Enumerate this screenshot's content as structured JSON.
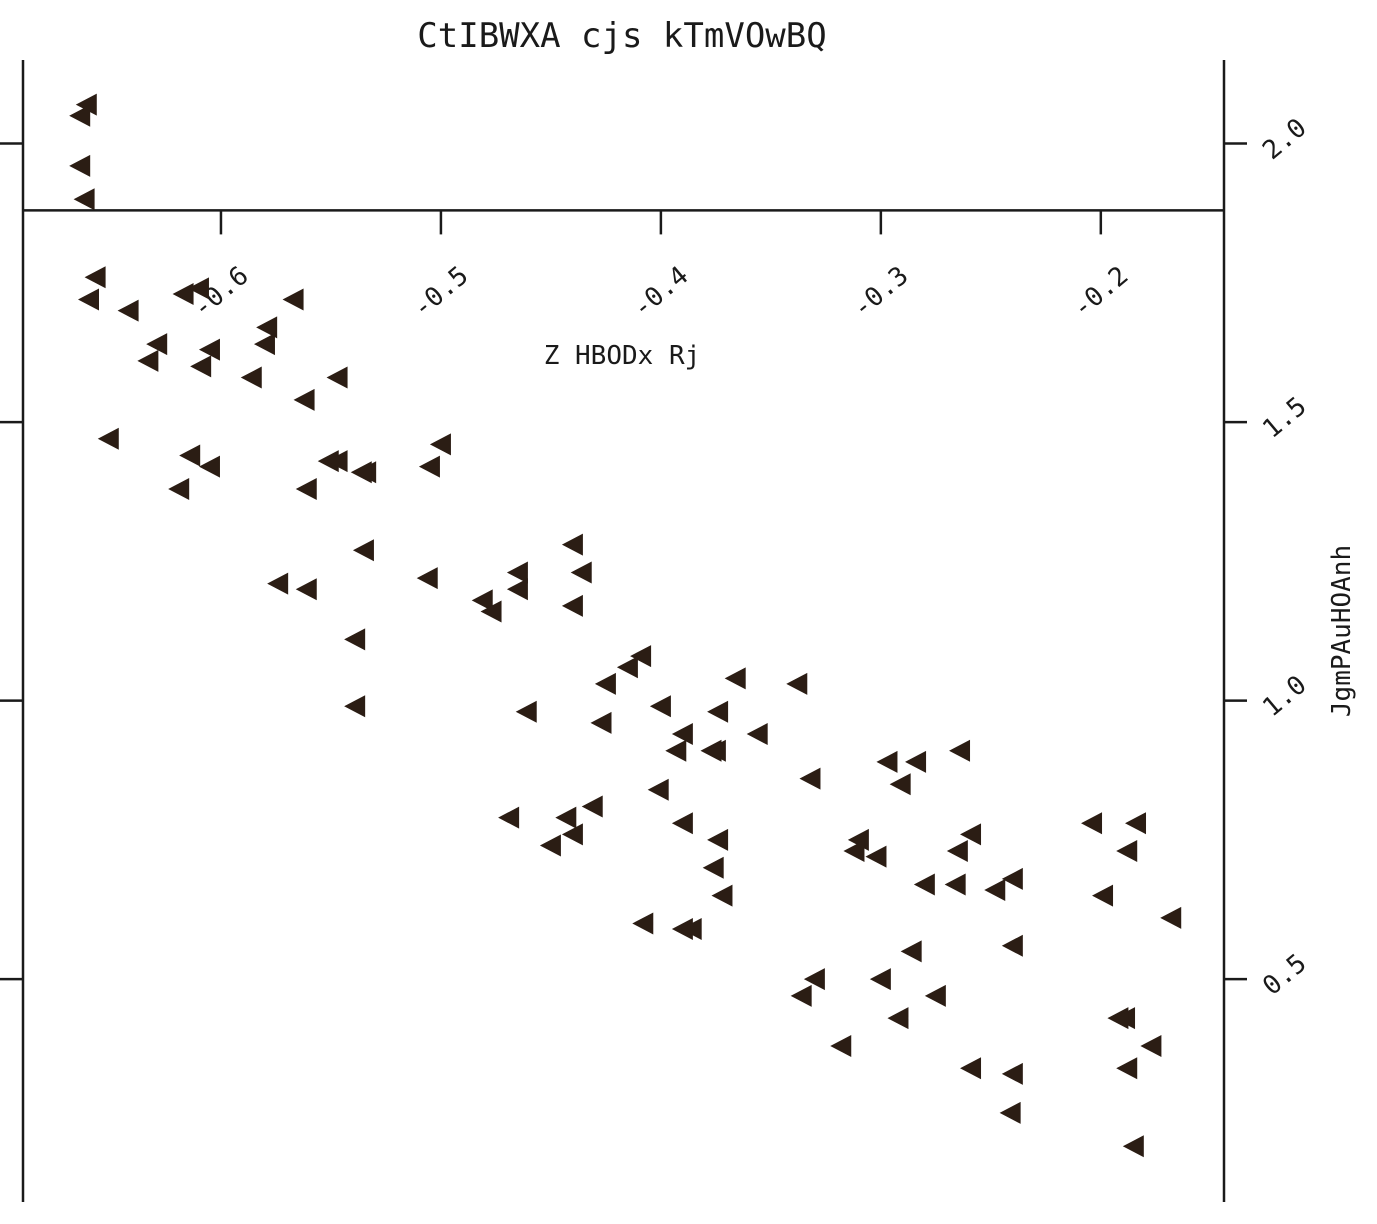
{
  "chart_data": {
    "type": "scatter",
    "title": "CtIBWXA  cjs kTmVOwBQ",
    "xlabel": "Z HBODx Rj",
    "ylabel": "JgmPAuHOAnh",
    "xlim": [
      -0.69,
      -0.144
    ],
    "ylim": [
      0.1,
      2.15
    ],
    "x_ticks": [
      "-0.6",
      "-0.5",
      "-0.4",
      "-0.3",
      "-0.2"
    ],
    "x_tick_values": [
      -0.6,
      -0.5,
      -0.4,
      -0.3,
      -0.2
    ],
    "y_ticks": [
      "0.5",
      "1.0",
      "1.5",
      "2.0"
    ],
    "y_tick_values": [
      0.5,
      1.0,
      1.5,
      2.0
    ],
    "x_axis_value": 1.88,
    "marker": "triangle-left",
    "marker_color": "#2b1d14",
    "grid": false,
    "series": [
      {
        "points": [
          [
            -0.661,
            2.07
          ],
          [
            -0.664,
            2.05
          ],
          [
            -0.664,
            1.96
          ],
          [
            -0.662,
            1.9
          ],
          [
            -0.657,
            1.76
          ],
          [
            -0.66,
            1.72
          ],
          [
            -0.642,
            1.7
          ],
          [
            -0.617,
            1.73
          ],
          [
            -0.61,
            1.74
          ],
          [
            -0.579,
            1.67
          ],
          [
            -0.567,
            1.72
          ],
          [
            -0.629,
            1.64
          ],
          [
            -0.633,
            1.61
          ],
          [
            -0.605,
            1.63
          ],
          [
            -0.609,
            1.6
          ],
          [
            -0.58,
            1.64
          ],
          [
            -0.586,
            1.58
          ],
          [
            -0.562,
            1.54
          ],
          [
            -0.547,
            1.58
          ],
          [
            -0.651,
            1.47
          ],
          [
            -0.614,
            1.44
          ],
          [
            -0.605,
            1.42
          ],
          [
            -0.619,
            1.38
          ],
          [
            -0.561,
            1.38
          ],
          [
            -0.551,
            1.43
          ],
          [
            -0.547,
            1.43
          ],
          [
            -0.534,
            1.41
          ],
          [
            -0.536,
            1.41
          ],
          [
            -0.5,
            1.46
          ],
          [
            -0.505,
            1.42
          ],
          [
            -0.535,
            1.27
          ],
          [
            -0.574,
            1.21
          ],
          [
            -0.561,
            1.2
          ],
          [
            -0.506,
            1.22
          ],
          [
            -0.539,
            1.11
          ],
          [
            -0.539,
            0.99
          ],
          [
            -0.481,
            1.18
          ],
          [
            -0.477,
            1.16
          ],
          [
            -0.465,
            1.23
          ],
          [
            -0.465,
            1.2
          ],
          [
            -0.44,
            1.28
          ],
          [
            -0.436,
            1.23
          ],
          [
            -0.44,
            1.17
          ],
          [
            -0.461,
            0.98
          ],
          [
            -0.409,
            1.08
          ],
          [
            -0.415,
            1.06
          ],
          [
            -0.425,
            1.03
          ],
          [
            -0.366,
            1.04
          ],
          [
            -0.338,
            1.03
          ],
          [
            -0.427,
            0.96
          ],
          [
            -0.4,
            0.99
          ],
          [
            -0.39,
            0.94
          ],
          [
            -0.393,
            0.91
          ],
          [
            -0.377,
            0.91
          ],
          [
            -0.375,
            0.91
          ],
          [
            -0.374,
            0.98
          ],
          [
            -0.356,
            0.94
          ],
          [
            -0.332,
            0.86
          ],
          [
            -0.297,
            0.89
          ],
          [
            -0.284,
            0.89
          ],
          [
            -0.291,
            0.85
          ],
          [
            -0.264,
            0.91
          ],
          [
            -0.431,
            0.81
          ],
          [
            -0.469,
            0.79
          ],
          [
            -0.443,
            0.79
          ],
          [
            -0.44,
            0.76
          ],
          [
            -0.45,
            0.74
          ],
          [
            -0.401,
            0.84
          ],
          [
            -0.39,
            0.78
          ],
          [
            -0.374,
            0.75
          ],
          [
            -0.376,
            0.7
          ],
          [
            -0.372,
            0.65
          ],
          [
            -0.31,
            0.75
          ],
          [
            -0.312,
            0.73
          ],
          [
            -0.302,
            0.72
          ],
          [
            -0.259,
            0.76
          ],
          [
            -0.265,
            0.73
          ],
          [
            -0.28,
            0.67
          ],
          [
            -0.266,
            0.67
          ],
          [
            -0.24,
            0.68
          ],
          [
            -0.248,
            0.66
          ],
          [
            -0.204,
            0.78
          ],
          [
            -0.199,
            0.65
          ],
          [
            -0.184,
            0.78
          ],
          [
            -0.188,
            0.73
          ],
          [
            -0.168,
            0.61
          ],
          [
            -0.408,
            0.6
          ],
          [
            -0.39,
            0.59
          ],
          [
            -0.386,
            0.59
          ],
          [
            -0.286,
            0.55
          ],
          [
            -0.24,
            0.56
          ],
          [
            -0.33,
            0.5
          ],
          [
            -0.336,
            0.47
          ],
          [
            -0.3,
            0.5
          ],
          [
            -0.292,
            0.43
          ],
          [
            -0.275,
            0.47
          ],
          [
            -0.318,
            0.38
          ],
          [
            -0.259,
            0.34
          ],
          [
            -0.24,
            0.33
          ],
          [
            -0.241,
            0.26
          ],
          [
            -0.189,
            0.43
          ],
          [
            -0.192,
            0.43
          ],
          [
            -0.177,
            0.38
          ],
          [
            -0.188,
            0.34
          ],
          [
            -0.185,
            0.2
          ]
        ]
      }
    ]
  }
}
